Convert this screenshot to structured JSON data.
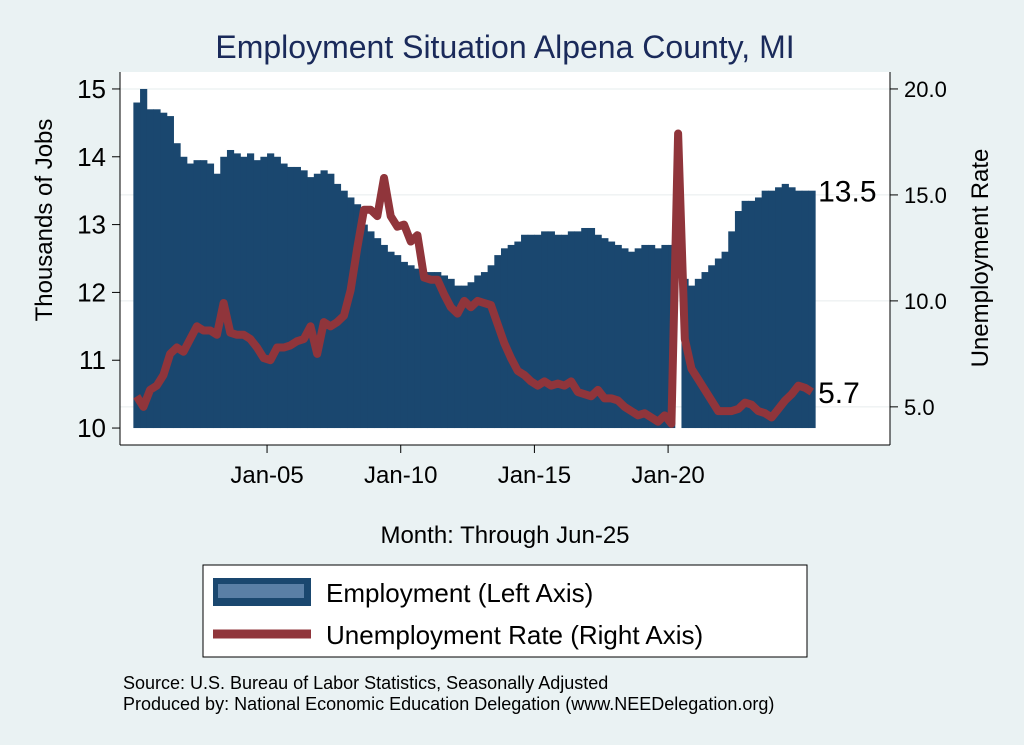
{
  "chart_data": {
    "type": "bar-line",
    "title": "Employment Situation Alpena  County, MI",
    "xlabel": "Month: Through Jun-25",
    "ylabel": "Thousands of Jobs",
    "y2label": "Unemployment Rate",
    "source": [
      "Source: U.S. Bureau of Labor Statistics, Seasonally Adjusted",
      "Produced by: National Economic Education Delegation (www.NEEDelegation.org)"
    ],
    "xlim": [
      1999.5,
      2028.3
    ],
    "xticks": [
      {
        "value": 2005,
        "label": "Jan-05"
      },
      {
        "value": 2010,
        "label": "Jan-10"
      },
      {
        "value": 2015,
        "label": "Jan-15"
      },
      {
        "value": 2020,
        "label": "Jan-20"
      }
    ],
    "ylim": [
      9.75,
      15.25
    ],
    "yticks": [
      10,
      11,
      12,
      13,
      14,
      15
    ],
    "y2lim": [
      3.2,
      20.8
    ],
    "y2ticks": [
      {
        "value": 5,
        "label": "5.0"
      },
      {
        "value": 10,
        "label": "10.0"
      },
      {
        "value": 15,
        "label": "15.0"
      },
      {
        "value": 20,
        "label": "20.0"
      }
    ],
    "grid": "y2",
    "x": [
      2000,
      2000.25,
      2000.5,
      2000.75,
      2001,
      2001.25,
      2001.5,
      2001.75,
      2002,
      2002.25,
      2002.5,
      2002.75,
      2003,
      2003.25,
      2003.5,
      2003.75,
      2004,
      2004.25,
      2004.5,
      2004.75,
      2005,
      2005.25,
      2005.5,
      2005.75,
      2006,
      2006.25,
      2006.5,
      2006.75,
      2007,
      2007.25,
      2007.5,
      2007.75,
      2008,
      2008.25,
      2008.5,
      2008.75,
      2009,
      2009.25,
      2009.5,
      2009.75,
      2010,
      2010.25,
      2010.5,
      2010.75,
      2011,
      2011.25,
      2011.5,
      2011.75,
      2012,
      2012.25,
      2012.5,
      2012.75,
      2013,
      2013.25,
      2013.5,
      2013.75,
      2014,
      2014.25,
      2014.5,
      2014.75,
      2015,
      2015.25,
      2015.5,
      2015.75,
      2016,
      2016.25,
      2016.5,
      2016.75,
      2017,
      2017.25,
      2017.5,
      2017.75,
      2018,
      2018.25,
      2018.5,
      2018.75,
      2019,
      2019.25,
      2019.5,
      2019.75,
      2020,
      2020.25,
      2020.5,
      2020.75,
      2021,
      2021.25,
      2021.5,
      2021.75,
      2022,
      2022.25,
      2022.5,
      2022.75,
      2023,
      2023.25,
      2023.5,
      2023.75,
      2024,
      2024.25,
      2024.5,
      2024.75,
      2025,
      2025.25
    ],
    "series": [
      {
        "name": "Employment (Left Axis)",
        "color": "#1a476f",
        "kind": "bar",
        "values": [
          14.8,
          15.0,
          14.7,
          14.7,
          14.65,
          14.6,
          14.2,
          14.0,
          13.9,
          13.95,
          13.95,
          13.9,
          13.75,
          14.0,
          14.1,
          14.05,
          14.0,
          14.05,
          13.95,
          14.0,
          14.05,
          14.0,
          13.9,
          13.85,
          13.85,
          13.8,
          13.7,
          13.75,
          13.8,
          13.75,
          13.6,
          13.5,
          13.4,
          13.3,
          13.0,
          12.9,
          12.8,
          12.7,
          12.6,
          12.55,
          12.45,
          12.4,
          12.35,
          12.3,
          12.3,
          12.3,
          12.25,
          12.2,
          12.1,
          12.1,
          12.15,
          12.25,
          12.3,
          12.4,
          12.55,
          12.65,
          12.7,
          12.75,
          12.85,
          12.85,
          12.85,
          12.9,
          12.9,
          12.85,
          12.85,
          12.9,
          12.9,
          12.95,
          12.95,
          12.85,
          12.8,
          12.75,
          12.7,
          12.65,
          12.6,
          12.65,
          12.7,
          12.7,
          12.65,
          12.7,
          12.7,
          10.0,
          12.2,
          12.1,
          12.2,
          12.3,
          12.4,
          12.5,
          12.6,
          12.9,
          13.2,
          13.35,
          13.35,
          13.4,
          13.5,
          13.5,
          13.55,
          13.6,
          13.55,
          13.5,
          13.5,
          13.5
        ]
      },
      {
        "name": "Unemployment Rate (Right Axis)",
        "color": "#90353b",
        "kind": "line",
        "axis": "y2",
        "values": [
          5.5,
          5.0,
          5.8,
          6.0,
          6.5,
          7.5,
          7.8,
          7.6,
          8.2,
          8.8,
          8.6,
          8.6,
          8.4,
          9.9,
          8.5,
          8.4,
          8.4,
          8.2,
          7.8,
          7.3,
          7.2,
          7.8,
          7.8,
          7.9,
          8.1,
          8.2,
          8.8,
          7.5,
          9.0,
          8.8,
          9.0,
          9.3,
          10.5,
          12.5,
          14.3,
          14.3,
          14.0,
          15.8,
          14.0,
          13.5,
          13.6,
          12.8,
          13.1,
          11.1,
          11.0,
          11.0,
          10.3,
          9.7,
          9.4,
          10.0,
          9.7,
          10.0,
          9.9,
          9.8,
          8.9,
          8.0,
          7.3,
          6.7,
          6.5,
          6.2,
          6.0,
          6.2,
          6.0,
          6.1,
          6.0,
          6.2,
          5.7,
          5.6,
          5.5,
          5.8,
          5.4,
          5.4,
          5.3,
          5.0,
          4.8,
          4.6,
          4.7,
          4.5,
          4.3,
          4.6,
          4.2,
          17.9,
          8.2,
          6.8,
          6.3,
          5.8,
          5.3,
          4.8,
          4.8,
          4.8,
          4.9,
          5.2,
          5.1,
          4.8,
          4.7,
          4.5,
          4.9,
          5.3,
          5.6,
          6.0,
          5.9,
          5.7
        ]
      }
    ]
  }
}
